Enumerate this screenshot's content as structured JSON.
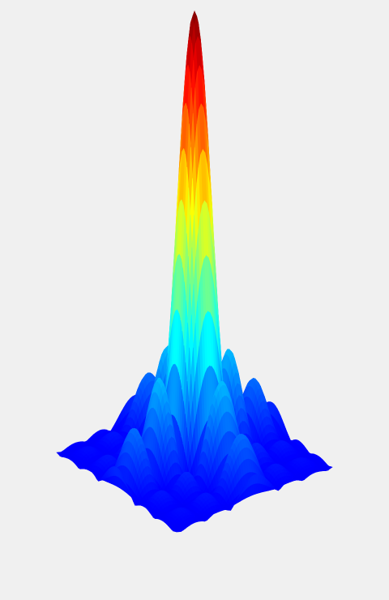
{
  "chart_data": {
    "type": "surface",
    "colormap": "jet"
  }
}
